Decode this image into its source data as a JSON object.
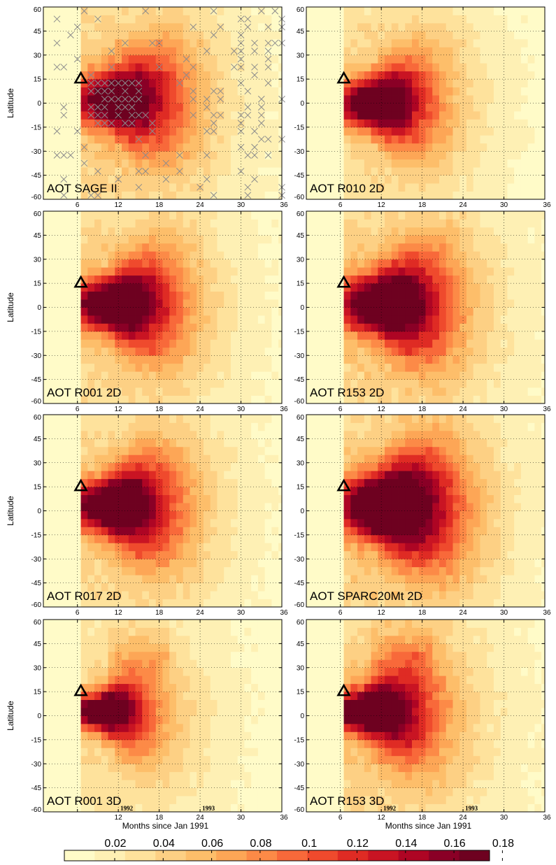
{
  "chart_data": {
    "type": "heatmap",
    "variable": "AOT",
    "x_ticks": [
      6,
      12,
      18,
      24,
      30,
      36
    ],
    "y_ticks": [
      60,
      45,
      30,
      15,
      0,
      -15,
      -30,
      -45,
      -60
    ],
    "xlim": [
      1,
      36
    ],
    "ylim": [
      -60,
      60
    ],
    "grid": true,
    "xlabel": "Months since Jan 1991",
    "ylabel": "Latitude",
    "eruption_marker": {
      "month": 6.5,
      "latitude": 15,
      "symbol": "triangle"
    },
    "year_labels": [
      {
        "month": 12,
        "label": "1992"
      },
      {
        "month": 24,
        "label": "1993"
      }
    ],
    "colorbar": {
      "levels": [
        0.02,
        0.04,
        0.06,
        0.08,
        0.1,
        0.12,
        0.14,
        0.16,
        0.18
      ],
      "labels": [
        "0.02",
        "0.04",
        "0.06",
        "0.08",
        "0.1",
        "0.12",
        "0.14",
        "0.16",
        "0.18"
      ],
      "colors": [
        "#FFFBC8",
        "#FEF0B4",
        "#FEE29C",
        "#FDD084",
        "#FDBE6A",
        "#FDA656",
        "#FC8A47",
        "#F8693A",
        "#EF4A2D",
        "#DF2B24",
        "#C91423",
        "#AE0524",
        "#8A0026",
        "#6E0120"
      ]
    },
    "panels": [
      {
        "title": "AOT SAGE II",
        "peak_lat": 2,
        "lat_width": 16,
        "peak_month": 10,
        "start_month": 7,
        "decay_month": 18,
        "peak_val": 0.175,
        "bg_val": 0.045,
        "tail_val": 0.03,
        "dim": "2D",
        "show_ylabel": true,
        "show_xlabel": false,
        "x_ticks_shown": [
          "6",
          "12",
          "18",
          "24",
          "30",
          "36"
        ],
        "year_labels": false,
        "crosses": true
      },
      {
        "title": "AOT R010 2D",
        "peak_lat": 0,
        "lat_width": 14,
        "peak_month": 10,
        "start_month": 7,
        "decay_month": 16,
        "peak_val": 0.2,
        "bg_val": 0.05,
        "tail_val": 0.02,
        "dim": "2D",
        "show_ylabel": false,
        "show_xlabel": false,
        "x_ticks_shown": [
          "6",
          "12",
          "18",
          "24",
          "30",
          "36"
        ],
        "year_labels": false,
        "crosses": false
      },
      {
        "title": "AOT R001 2D",
        "peak_lat": 2,
        "lat_width": 15,
        "peak_month": 10,
        "start_month": 7,
        "decay_month": 17,
        "peak_val": 0.2,
        "bg_val": 0.05,
        "tail_val": 0.025,
        "dim": "2D",
        "show_ylabel": true,
        "show_xlabel": false,
        "x_ticks_shown": [
          "6",
          "12",
          "18",
          "24",
          "30",
          "36"
        ],
        "year_labels": false,
        "crosses": false
      },
      {
        "title": "AOT R153 2D",
        "peak_lat": 2,
        "lat_width": 17,
        "peak_month": 11,
        "start_month": 7,
        "decay_month": 18,
        "peak_val": 0.2,
        "bg_val": 0.055,
        "tail_val": 0.03,
        "dim": "2D",
        "show_ylabel": false,
        "show_xlabel": false,
        "x_ticks_shown": [
          "6",
          "12",
          "18",
          "24",
          "30",
          "36"
        ],
        "year_labels": false,
        "crosses": false
      },
      {
        "title": "AOT R017 2D",
        "peak_lat": 3,
        "lat_width": 16,
        "peak_month": 10,
        "start_month": 7,
        "decay_month": 17,
        "peak_val": 0.2,
        "bg_val": 0.05,
        "tail_val": 0.025,
        "dim": "2D",
        "show_ylabel": true,
        "show_xlabel": false,
        "x_ticks_shown": [
          "6",
          "12",
          "18",
          "24",
          "30",
          "36"
        ],
        "year_labels": false,
        "crosses": false
      },
      {
        "title": "AOT SPARC20Mt 2D",
        "peak_lat": 3,
        "lat_width": 18,
        "peak_month": 11,
        "start_month": 7,
        "decay_month": 19,
        "peak_val": 0.22,
        "bg_val": 0.06,
        "tail_val": 0.03,
        "dim": "2D",
        "show_ylabel": false,
        "show_xlabel": false,
        "x_ticks_shown": [
          "6",
          "12",
          "18",
          "24",
          "30",
          "36"
        ],
        "year_labels": false,
        "crosses": false
      },
      {
        "title": "AOT R001 3D",
        "peak_lat": 3,
        "lat_width": 11,
        "peak_month": 9,
        "start_month": 7,
        "decay_month": 14,
        "peak_val": 0.2,
        "bg_val": 0.04,
        "tail_val": 0.02,
        "dim": "3D",
        "show_ylabel": true,
        "show_xlabel": true,
        "x_ticks_shown": [
          "",
          "12",
          "18",
          "24",
          "30",
          "36"
        ],
        "year_labels": true,
        "crosses": false
      },
      {
        "title": "AOT R153 3D",
        "peak_lat": 3,
        "lat_width": 12,
        "peak_month": 9,
        "start_month": 7,
        "decay_month": 16,
        "peak_val": 0.2,
        "bg_val": 0.05,
        "tail_val": 0.03,
        "dim": "3D",
        "show_ylabel": false,
        "show_xlabel": true,
        "x_ticks_shown": [
          "6",
          "12",
          "18",
          "24",
          "30",
          "36"
        ],
        "year_labels": true,
        "crosses": false
      }
    ]
  }
}
